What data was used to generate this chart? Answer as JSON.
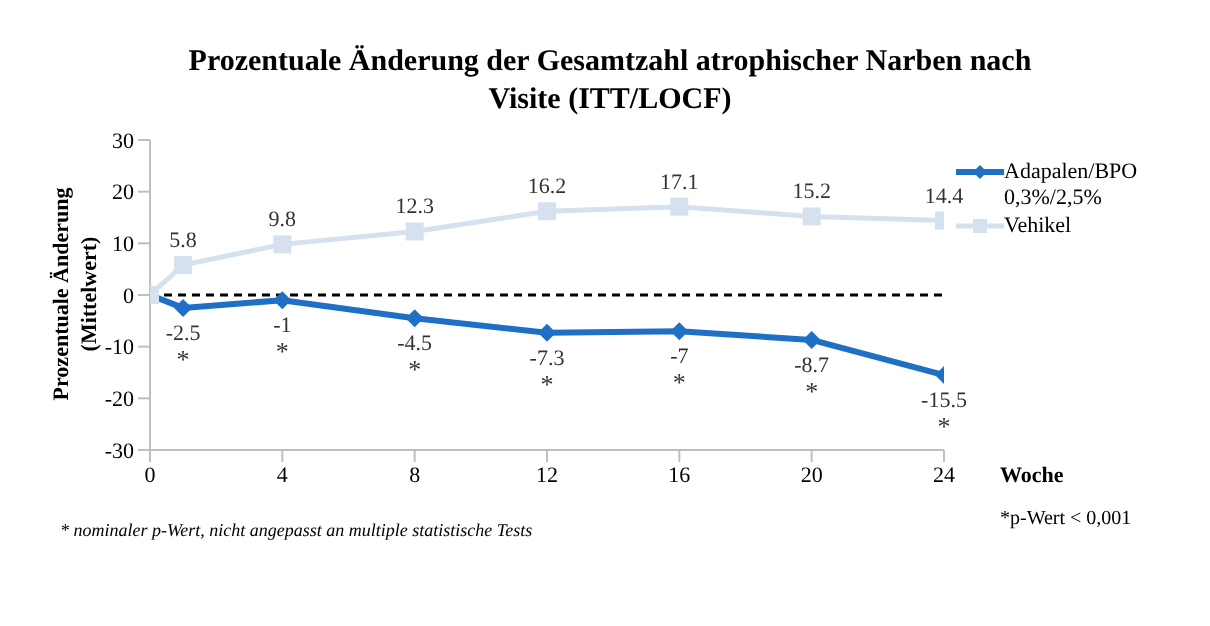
{
  "chart_data": {
    "type": "line",
    "title": "Prozentuale Änderung der Gesamtzahl atrophischer Narben nach Visite (ITT/LOCF)",
    "xlabel": "Woche",
    "ylabel": "Prozentuale Änderung (Mittelwert)",
    "x": [
      0,
      1,
      4,
      8,
      12,
      16,
      20,
      24
    ],
    "series": [
      {
        "name": "Adapalen/BPO 0,3%/2,5%",
        "color": "#1f6fc4",
        "marker": "diamond",
        "values": [
          0,
          -2.5,
          -1,
          -4.5,
          -7.3,
          -7,
          -8.7,
          -15.5
        ],
        "value_labels": [
          null,
          "-2.5",
          "-1",
          "-4.5",
          "-7.3",
          "-7",
          "-8.7",
          "-15.5"
        ]
      },
      {
        "name": "Vehikel",
        "color": "#d5e1ef",
        "marker": "square",
        "values": [
          0,
          5.8,
          9.8,
          12.3,
          16.2,
          17.1,
          15.2,
          14.4
        ],
        "value_labels": [
          null,
          "5.8",
          "9.8",
          "12.3",
          "16.2",
          "17.1",
          "15.2",
          "14.4"
        ]
      }
    ],
    "xlim": [
      0,
      24
    ],
    "xticks": [
      0,
      4,
      8,
      12,
      16,
      20,
      24
    ],
    "ylim": [
      -30,
      30
    ],
    "yticks": [
      -30,
      -20,
      -10,
      0,
      10,
      20,
      30
    ],
    "legend": "top right",
    "line_style": "solid",
    "ref_lines": [
      {
        "axis": "y",
        "value": 0,
        "color": "#000000",
        "line_style": "dashed"
      }
    ],
    "annotations": [
      {
        "text": "*",
        "x": 1,
        "y": -2.5
      },
      {
        "text": "*",
        "x": 4,
        "y": -1
      },
      {
        "text": "*",
        "x": 8,
        "y": -4.5
      },
      {
        "text": "*",
        "x": 12,
        "y": -7.3
      },
      {
        "text": "*",
        "x": 16,
        "y": -7
      },
      {
        "text": "*",
        "x": 20,
        "y": -8.7
      },
      {
        "text": "*",
        "x": 24,
        "y": -15.5
      },
      "*p-Wert < 0,001",
      "* nominaler p-Wert, nicht angepasst an multiple statistische Tests"
    ]
  }
}
